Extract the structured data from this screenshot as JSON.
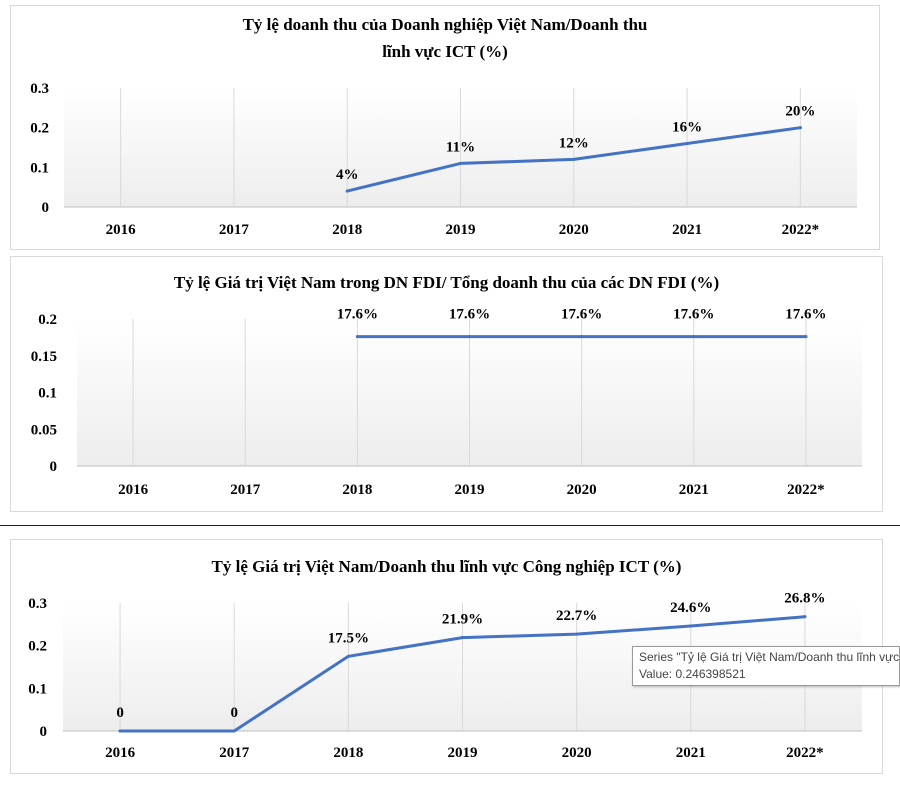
{
  "chart_data": [
    {
      "type": "line",
      "title_lines": [
        "Tỷ lệ doanh thu của Doanh nghiệp Việt Nam/Doanh thu",
        "lĩnh vực ICT (%)"
      ],
      "categories": [
        "2016",
        "2017",
        "2018",
        "2019",
        "2020",
        "2021",
        "2022*"
      ],
      "series": [
        {
          "values": [
            null,
            null,
            0.04,
            0.11,
            0.12,
            0.16,
            0.2
          ],
          "data_labels": [
            null,
            null,
            "4%",
            "11%",
            "12%",
            "16%",
            "20%"
          ]
        }
      ],
      "ylim": [
        0,
        0.3
      ],
      "yticks": [
        0,
        0.1,
        0.2,
        0.3
      ],
      "ytick_labels": [
        "0",
        "0.1",
        "0.2",
        "0.3"
      ],
      "grid": "vertical",
      "color": "#4472c4"
    },
    {
      "type": "line",
      "title_lines": [
        "Tỷ lệ Giá trị Việt Nam trong DN FDI/ Tổng doanh thu của các DN FDI (%)"
      ],
      "categories": [
        "2016",
        "2017",
        "2018",
        "2019",
        "2020",
        "2021",
        "2022*"
      ],
      "series": [
        {
          "values": [
            null,
            null,
            0.176,
            0.176,
            0.176,
            0.176,
            0.176
          ],
          "data_labels": [
            null,
            null,
            "17.6%",
            "17.6%",
            "17.6%",
            "17.6%",
            "17.6%"
          ]
        }
      ],
      "ylim": [
        0,
        0.2
      ],
      "yticks": [
        0,
        0.05,
        0.1,
        0.15,
        0.2
      ],
      "ytick_labels": [
        "0",
        "0.05",
        "0.1",
        "0.15",
        "0.2"
      ],
      "grid": "vertical",
      "color": "#4472c4"
    },
    {
      "type": "line",
      "title_lines": [
        "Tỷ lệ Giá trị Việt Nam/Doanh thu lĩnh vực Công nghiệp ICT (%)"
      ],
      "categories": [
        "2016",
        "2017",
        "2018",
        "2019",
        "2020",
        "2021",
        "2022*"
      ],
      "series": [
        {
          "values": [
            0,
            0,
            0.175,
            0.219,
            0.227,
            0.246,
            0.268
          ],
          "data_labels": [
            "0",
            "0",
            "17.5%",
            "21.9%",
            "22.7%",
            "24.6%",
            "26.8%"
          ]
        }
      ],
      "ylim": [
        0,
        0.3
      ],
      "yticks": [
        0,
        0.1,
        0.2,
        0.3
      ],
      "ytick_labels": [
        "0",
        "0.1",
        "0.2",
        "0.3"
      ],
      "grid": "vertical",
      "color": "#4472c4"
    }
  ],
  "tooltip": {
    "series_line": "Series \"Tỷ lệ Giá trị Việt Nam/Doanh thu lĩnh vực Công nghiệp ICT (%)\"",
    "value_line": "Value: 0.246398521"
  }
}
